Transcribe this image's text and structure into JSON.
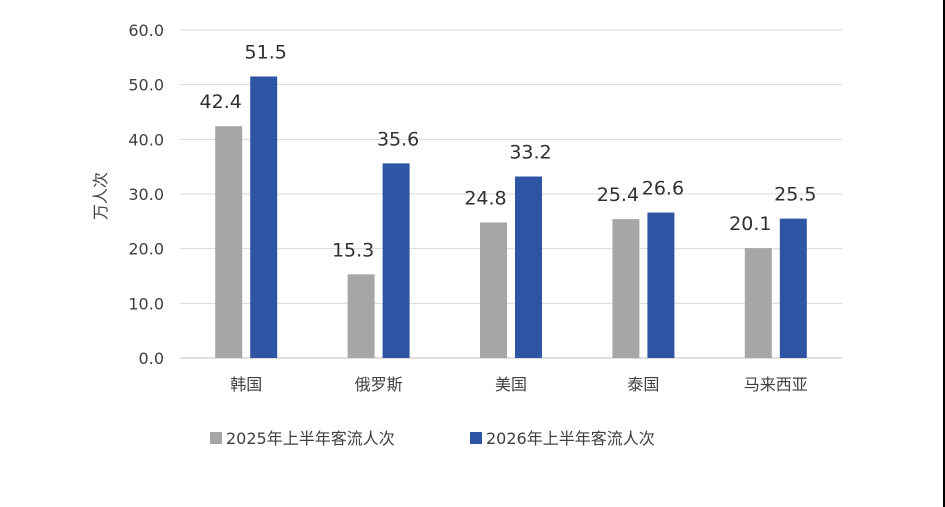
{
  "chart_data": {
    "type": "bar",
    "categories": [
      "韩国",
      "俄罗斯",
      "美国",
      "泰国",
      "马来西亚"
    ],
    "series": [
      {
        "name": "2025年上半年客流人次",
        "values": [
          42.4,
          15.3,
          24.8,
          25.4,
          20.1
        ],
        "color": "#a6a6a6"
      },
      {
        "name": "2026年上半年客流人次",
        "values": [
          51.5,
          35.6,
          33.2,
          26.6,
          25.5
        ],
        "color": "#2e54a4"
      }
    ],
    "title": "",
    "xlabel": "",
    "ylabel": "万人次",
    "ylim": [
      0,
      60
    ],
    "yticks": [
      "0.0",
      "10.0",
      "20.0",
      "30.0",
      "40.0",
      "50.0",
      "60.0"
    ],
    "data_labels": [
      [
        "42.4",
        "15.3",
        "24.8",
        "25.4",
        "20.1"
      ],
      [
        "51.5",
        "35.6",
        "33.2",
        "26.6",
        "25.5"
      ]
    ],
    "grid": true,
    "legend": "bottom"
  }
}
